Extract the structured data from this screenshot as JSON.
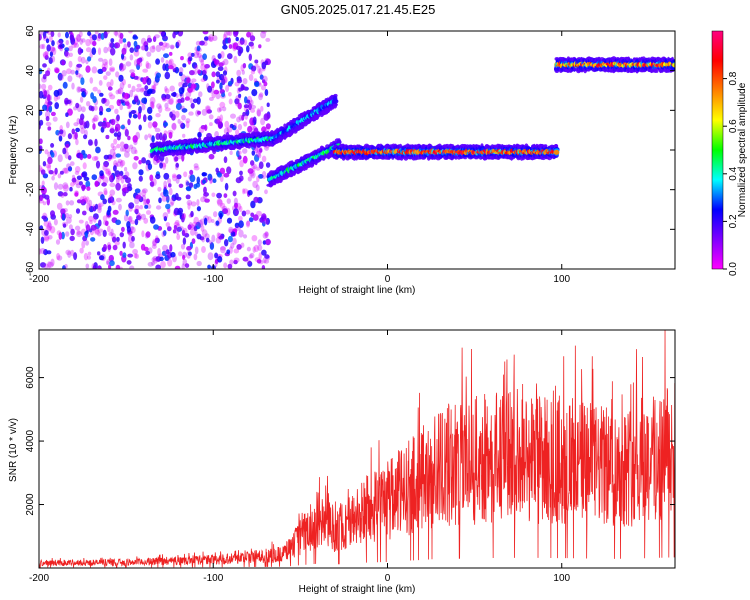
{
  "title": "GN05.2025.017.21.45.E25",
  "chart_data": [
    {
      "type": "heatmap",
      "xlabel": "Height of straight line (km)",
      "ylabel": "Frequency (Hz)",
      "xlim": [
        -200,
        165
      ],
      "ylim": [
        -60,
        60
      ],
      "x_ticks": [
        -200,
        -100,
        0,
        100
      ],
      "y_ticks": [
        -60,
        -40,
        -20,
        0,
        20,
        40,
        60
      ],
      "colorbar": {
        "label": "Normalized spectral amplitude",
        "range": [
          0,
          1
        ],
        "ticks": [
          0.0,
          0.2,
          0.4,
          0.6,
          0.8
        ],
        "colormap": [
          "#ff00ff",
          "#7f00ff",
          "#0000ff",
          "#00ffff",
          "#00ff00",
          "#ffff00",
          "#ff7f00",
          "#ff0000",
          "#ff0080"
        ]
      },
      "features": [
        {
          "kind": "noise",
          "x_range": [
            -200,
            -68
          ],
          "freq_range": [
            -60,
            60
          ],
          "amplitude_range": [
            0.05,
            0.3
          ]
        },
        {
          "kind": "track",
          "x_range": [
            -135,
            -65
          ],
          "freq_start": 0,
          "freq_end": 6,
          "amplitude_range": [
            0.3,
            0.5
          ]
        },
        {
          "kind": "track",
          "x_range": [
            -65,
            -30
          ],
          "freq_start": 6,
          "freq_end": 25,
          "amplitude_range": [
            0.2,
            0.4
          ]
        },
        {
          "kind": "track",
          "x_range": [
            -68,
            -28
          ],
          "freq_start": -15,
          "freq_end": 2,
          "amplitude_range": [
            0.3,
            0.5
          ]
        },
        {
          "kind": "track",
          "x_range": [
            -30,
            97
          ],
          "freq_start": -1,
          "freq_end": -1,
          "amplitude_range": [
            0.7,
            0.95
          ]
        },
        {
          "kind": "track",
          "x_range": [
            97,
            165
          ],
          "freq_start": 43,
          "freq_end": 43,
          "amplitude_range": [
            0.6,
            0.95
          ]
        }
      ]
    },
    {
      "type": "line",
      "xlabel": "Height of straight line (km)",
      "ylabel": "SNR (10 * v/v)",
      "xlim": [
        -200,
        165
      ],
      "ylim": [
        0,
        7500
      ],
      "x_ticks": [
        -200,
        -100,
        0,
        100
      ],
      "y_ticks": [
        2000,
        4000,
        6000
      ],
      "color": "#ee2222",
      "envelope": {
        "x": [
          -200,
          -150,
          -100,
          -80,
          -60,
          -50,
          -40,
          -35,
          -30,
          -20,
          -10,
          0,
          10,
          20,
          30,
          40,
          50,
          60,
          70,
          80,
          90,
          100,
          110,
          120,
          130,
          140,
          150,
          160,
          165
        ],
        "y": [
          180,
          200,
          300,
          380,
          500,
          1100,
          1700,
          1600,
          1400,
          1700,
          2200,
          2400,
          2800,
          3200,
          3600,
          3800,
          3900,
          3950,
          4000,
          4000,
          3950,
          3900,
          3800,
          3700,
          3600,
          3700,
          3900,
          4100,
          4200
        ]
      }
    }
  ]
}
